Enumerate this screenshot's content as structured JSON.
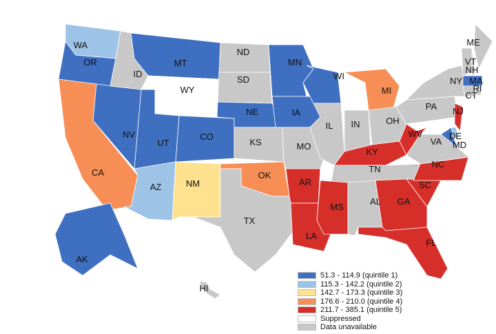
{
  "legend": [
    {
      "label": "51.3 - 114.9 (quintile 1)",
      "color": "#3f6fc0",
      "key": "q1"
    },
    {
      "label": "115.3 - 142.2 (quintile 2)",
      "color": "#9dc3e6",
      "key": "q2"
    },
    {
      "label": "142.7 - 173.3 (quintile 3)",
      "color": "#ffe28f",
      "key": "q3"
    },
    {
      "label": "176.6 - 210.0 (quintile 4)",
      "color": "#f68e55",
      "key": "q4"
    },
    {
      "label": "211.7 - 385.1 (quintile 5)",
      "color": "#d62f2a",
      "key": "q5"
    },
    {
      "label": "Suppressed",
      "color": "#ffffff",
      "key": "sup"
    },
    {
      "label": "Data unavailable",
      "color": "#c8c8c8",
      "key": "na"
    }
  ],
  "states": [
    {
      "abbr": "WA",
      "class": "q2"
    },
    {
      "abbr": "OR",
      "class": "q1"
    },
    {
      "abbr": "CA",
      "class": "q4"
    },
    {
      "abbr": "NV",
      "class": "q1"
    },
    {
      "abbr": "ID",
      "class": "na"
    },
    {
      "abbr": "MT",
      "class": "q1"
    },
    {
      "abbr": "WY",
      "class": "sup"
    },
    {
      "abbr": "UT",
      "class": "q1"
    },
    {
      "abbr": "CO",
      "class": "q1"
    },
    {
      "abbr": "AZ",
      "class": "q2"
    },
    {
      "abbr": "NM",
      "class": "q3"
    },
    {
      "abbr": "ND",
      "class": "na"
    },
    {
      "abbr": "SD",
      "class": "na"
    },
    {
      "abbr": "NE",
      "class": "q1"
    },
    {
      "abbr": "KS",
      "class": "na"
    },
    {
      "abbr": "OK",
      "class": "q4"
    },
    {
      "abbr": "TX",
      "class": "na"
    },
    {
      "abbr": "MN",
      "class": "q1"
    },
    {
      "abbr": "IA",
      "class": "q1"
    },
    {
      "abbr": "MO",
      "class": "na"
    },
    {
      "abbr": "AR",
      "class": "q5"
    },
    {
      "abbr": "LA",
      "class": "q5"
    },
    {
      "abbr": "WI",
      "class": "q1"
    },
    {
      "abbr": "IL",
      "class": "na"
    },
    {
      "abbr": "MI",
      "class": "q4"
    },
    {
      "abbr": "IN",
      "class": "na"
    },
    {
      "abbr": "OH",
      "class": "na"
    },
    {
      "abbr": "KY",
      "class": "q5"
    },
    {
      "abbr": "TN",
      "class": "na"
    },
    {
      "abbr": "MS",
      "class": "q5"
    },
    {
      "abbr": "AL",
      "class": "na"
    },
    {
      "abbr": "GA",
      "class": "q5"
    },
    {
      "abbr": "FL",
      "class": "q5"
    },
    {
      "abbr": "SC",
      "class": "q5"
    },
    {
      "abbr": "NC",
      "class": "q5"
    },
    {
      "abbr": "VA",
      "class": "na"
    },
    {
      "abbr": "WV",
      "class": "q5"
    },
    {
      "abbr": "PA",
      "class": "na"
    },
    {
      "abbr": "NY",
      "class": "na"
    },
    {
      "abbr": "NJ",
      "class": "q5"
    },
    {
      "abbr": "DE",
      "class": "q2"
    },
    {
      "abbr": "MD",
      "class": "q1"
    },
    {
      "abbr": "VT",
      "class": "na"
    },
    {
      "abbr": "NH",
      "class": "na"
    },
    {
      "abbr": "ME",
      "class": "na"
    },
    {
      "abbr": "MA",
      "class": "q1"
    },
    {
      "abbr": "CT",
      "class": "na"
    },
    {
      "abbr": "RI",
      "class": "na"
    },
    {
      "abbr": "AK",
      "class": "q1"
    },
    {
      "abbr": "HI",
      "class": "na"
    }
  ]
}
